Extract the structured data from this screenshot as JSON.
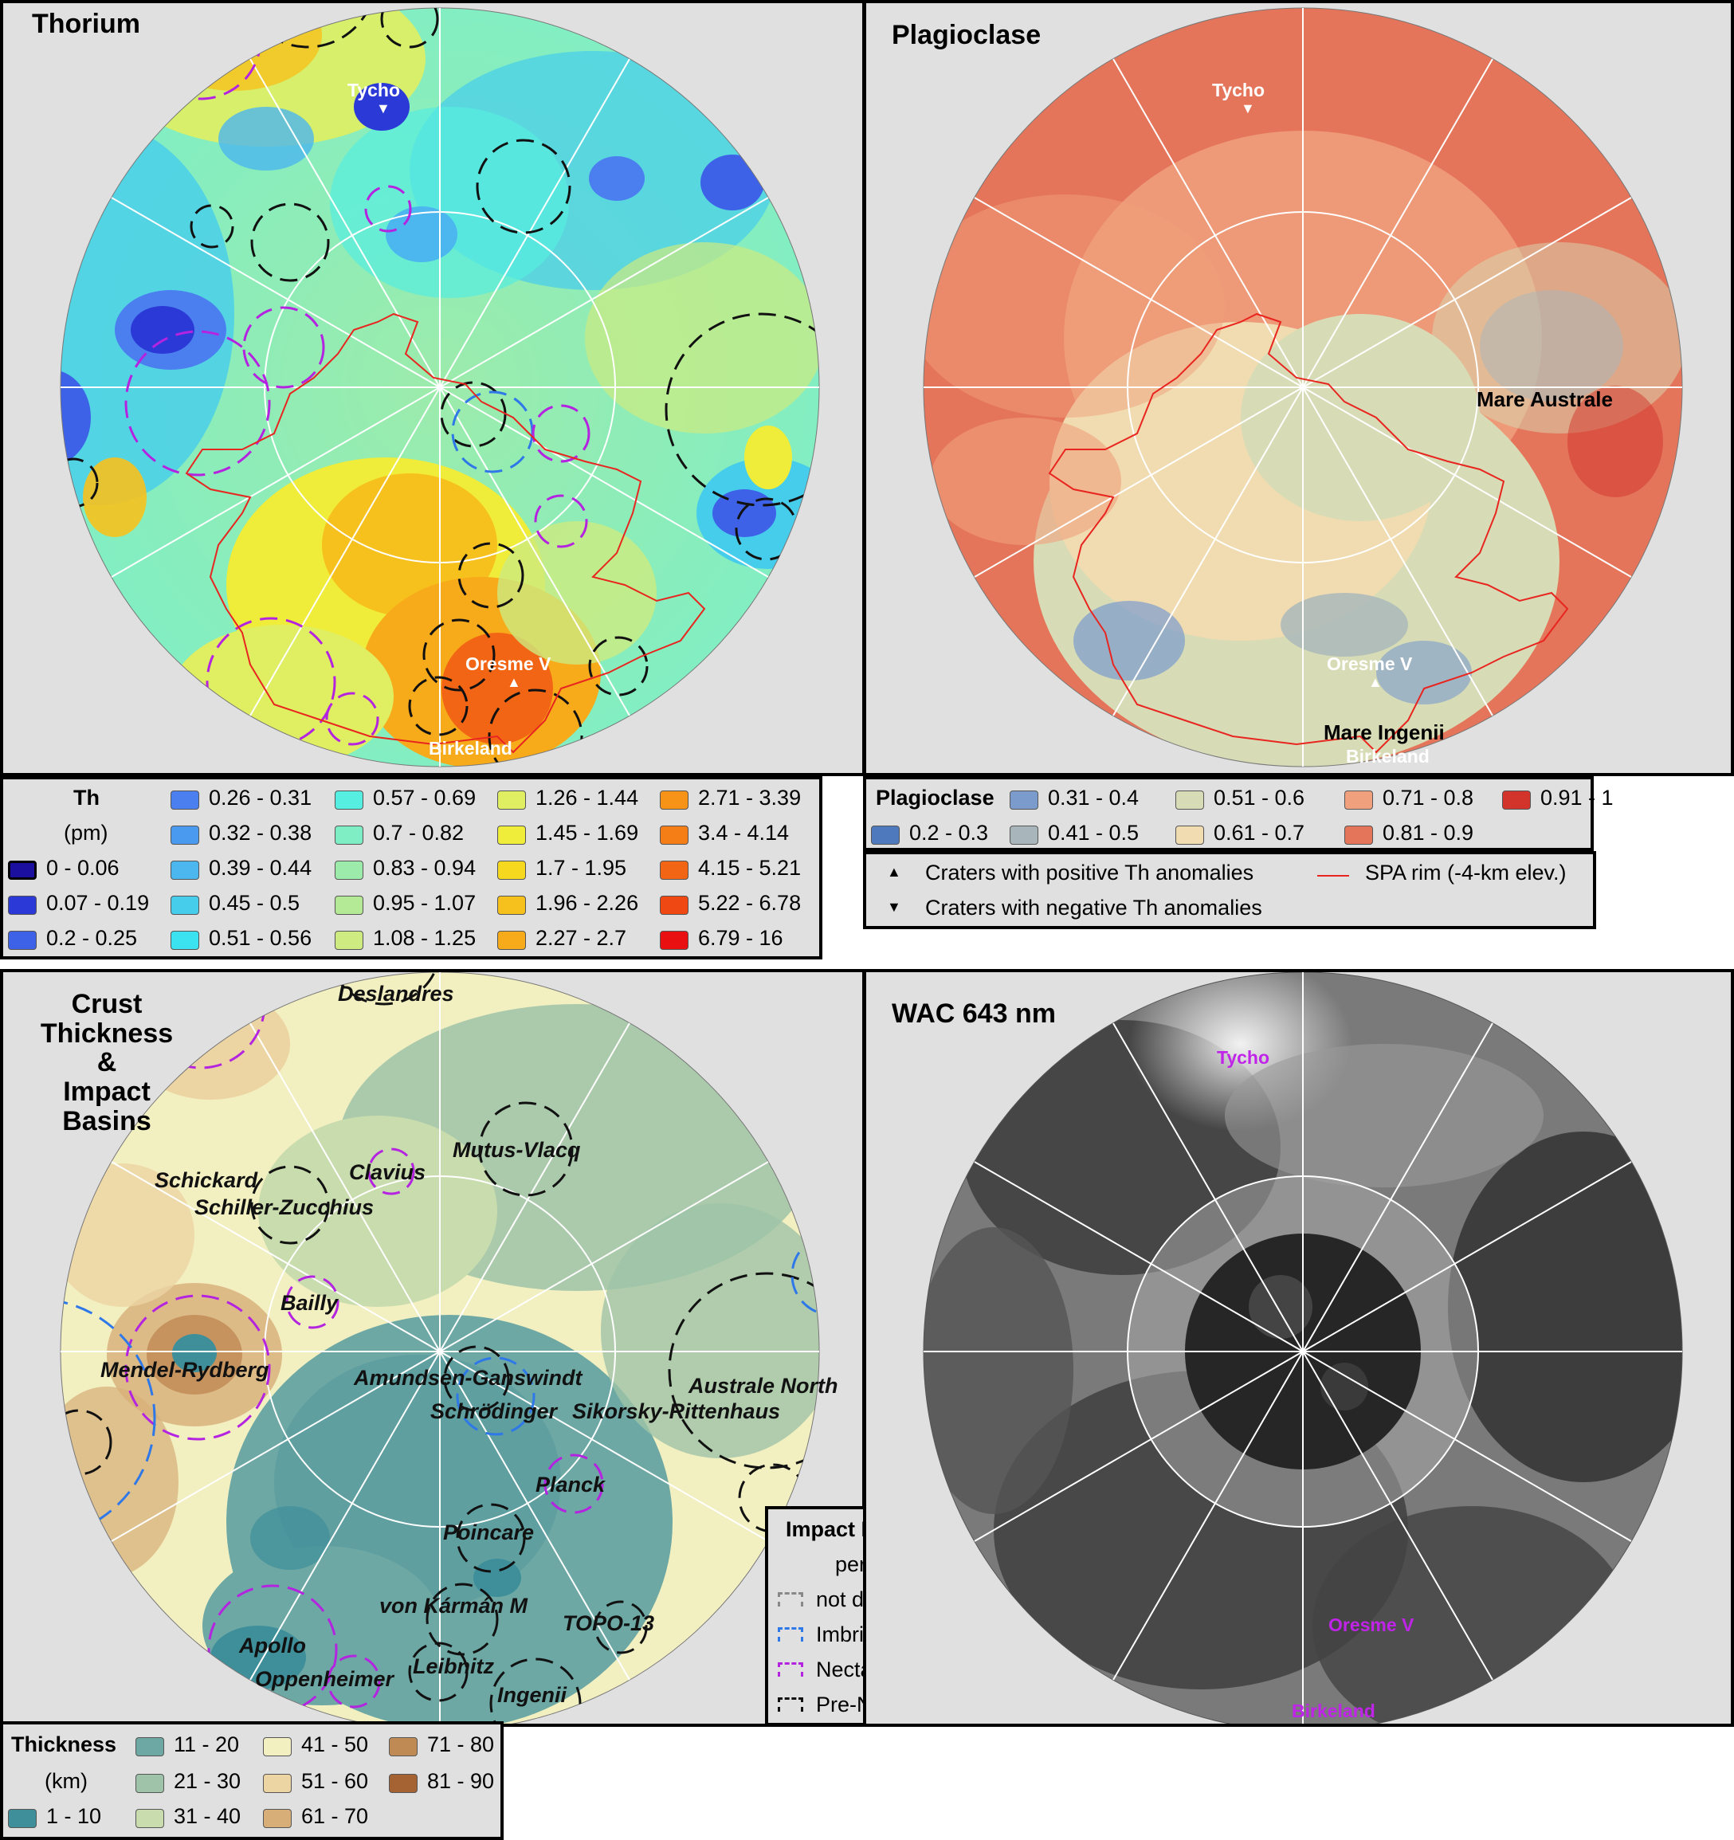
{
  "colors": {
    "sea_background": "#e0e0e0",
    "spa_rim": "#e8251f",
    "grid": "#ffffff",
    "imbrian": "#2f78e8",
    "nectarian": "#b424e0",
    "pre_nectarian": "#111111",
    "not_dated": "#888888"
  },
  "thorium": {
    "title": "Thorium",
    "labels": {
      "tycho": "Tycho",
      "oresme": "Oresme V",
      "birkeland": "Birkeland"
    },
    "legend": {
      "title": "Th",
      "unit": "(pm)",
      "items": [
        {
          "label": "0 - 0.06",
          "color": "#1a0f9e"
        },
        {
          "label": "0.07 - 0.19",
          "color": "#2b3ad6"
        },
        {
          "label": "0.2 - 0.25",
          "color": "#3d62e8"
        },
        {
          "label": "0.26 - 0.31",
          "color": "#4b7ff0"
        },
        {
          "label": "0.32 - 0.38",
          "color": "#4a9af0"
        },
        {
          "label": "0.39 - 0.44",
          "color": "#4cb6ef"
        },
        {
          "label": "0.45 - 0.5",
          "color": "#46cdec"
        },
        {
          "label": "0.51 - 0.56",
          "color": "#3be2ef"
        },
        {
          "label": "0.57 - 0.69",
          "color": "#55eee0"
        },
        {
          "label": "0.7 - 0.82",
          "color": "#80eec4"
        },
        {
          "label": "0.83 - 0.94",
          "color": "#9cebab"
        },
        {
          "label": "0.95 - 1.07",
          "color": "#b4e996"
        },
        {
          "label": "1.08 - 1.25",
          "color": "#cdeb80"
        },
        {
          "label": "1.26 - 1.44",
          "color": "#e0ee62"
        },
        {
          "label": "1.45 - 1.69",
          "color": "#f0ec3a"
        },
        {
          "label": "1.7 - 1.95",
          "color": "#f6d81e"
        },
        {
          "label": "1.96 - 2.26",
          "color": "#f7c11d"
        },
        {
          "label": "2.27 - 2.7",
          "color": "#f7aa1a"
        },
        {
          "label": "2.71 - 3.39",
          "color": "#f79418"
        },
        {
          "label": "3.4 - 4.14",
          "color": "#f57e16"
        },
        {
          "label": "4.15 - 5.21",
          "color": "#f26514"
        },
        {
          "label": "5.22 - 6.78",
          "color": "#ef4812"
        },
        {
          "label": "6.79 - 16",
          "color": "#e81010"
        }
      ]
    }
  },
  "plagioclase": {
    "title": "Plagioclase",
    "labels": {
      "tycho": "Tycho",
      "mare_australe": "Mare Australe",
      "oresme": "Oresme V",
      "mare_ingenii": "Mare Ingenii",
      "birkeland": "Birkeland"
    },
    "legend": {
      "title": "Plagioclase",
      "items": [
        {
          "label": "0.2 - 0.3",
          "color": "#4f79bd"
        },
        {
          "label": "0.31 - 0.4",
          "color": "#7c9bcd"
        },
        {
          "label": "0.41 - 0.5",
          "color": "#a8b6bc"
        },
        {
          "label": "0.51 - 0.6",
          "color": "#d7dcb6"
        },
        {
          "label": "0.61 - 0.7",
          "color": "#f1dcb1"
        },
        {
          "label": "0.71 - 0.8",
          "color": "#f0a07c"
        },
        {
          "label": "0.81 - 0.9",
          "color": "#e4755a"
        },
        {
          "label": "0.91 - 1",
          "color": "#d2332b"
        }
      ]
    },
    "markers": {
      "positive": "Craters with positive Th anomalies",
      "negative": "Craters with negative Th anomalies",
      "rim": "SPA rim (-4-km elev.)"
    }
  },
  "crust": {
    "title_lines": [
      "Crust",
      "Thickness",
      "&",
      "Impact",
      "Basins"
    ],
    "basins": {
      "deslandres": "Deslandres",
      "mutus_vlacq": "Mutus-Vlacq",
      "clavius": "Clavius",
      "schickard": "Schickard",
      "schiller": "Schiller-Zucchius",
      "bailly": "Bailly",
      "mendel": "Mendel-Rydberg",
      "amundsen": "Amundsen-Ganswindt",
      "schrodinger": "Schrödinger",
      "sikorsky": "Sikorsky-Rittenhaus",
      "australe_north": "Australe North",
      "planck": "Planck",
      "poincare": "Poincare",
      "von_karman": "von Kármán M",
      "topo13": "TOPO-13",
      "apollo": "Apollo",
      "oppenheimer": "Oppenheimer",
      "leibnitz": "Leibnitz",
      "ingenii": "Ingenii"
    },
    "impact_legend": {
      "title": "Impact Basins",
      "subtitle": "period",
      "items": [
        {
          "label": "not dated",
          "color": "#888888"
        },
        {
          "label": "Imbrian",
          "color": "#2f78e8"
        },
        {
          "label": "Nectarian",
          "color": "#b424e0"
        },
        {
          "label": "Pre-Nectarian",
          "color": "#111111"
        }
      ]
    },
    "thickness_legend": {
      "title": "Thickness",
      "unit": "(km)",
      "items": [
        {
          "label": "1 - 10",
          "color": "#3e8f9a"
        },
        {
          "label": "11 - 20",
          "color": "#6da8a4"
        },
        {
          "label": "21 - 30",
          "color": "#9fc3a8"
        },
        {
          "label": "31 - 40",
          "color": "#c9dcae"
        },
        {
          "label": "41 - 50",
          "color": "#f2efc0"
        },
        {
          "label": "51 - 60",
          "color": "#ecd5a2"
        },
        {
          "label": "61 - 70",
          "color": "#d7ae78"
        },
        {
          "label": "71 - 80",
          "color": "#c08a55"
        },
        {
          "label": "81 - 90",
          "color": "#a56232"
        }
      ]
    }
  },
  "wac": {
    "title": "WAC 643 nm",
    "labels": {
      "tycho": "Tycho",
      "oresme": "Oresme V",
      "birkeland": "Birkeland"
    }
  }
}
